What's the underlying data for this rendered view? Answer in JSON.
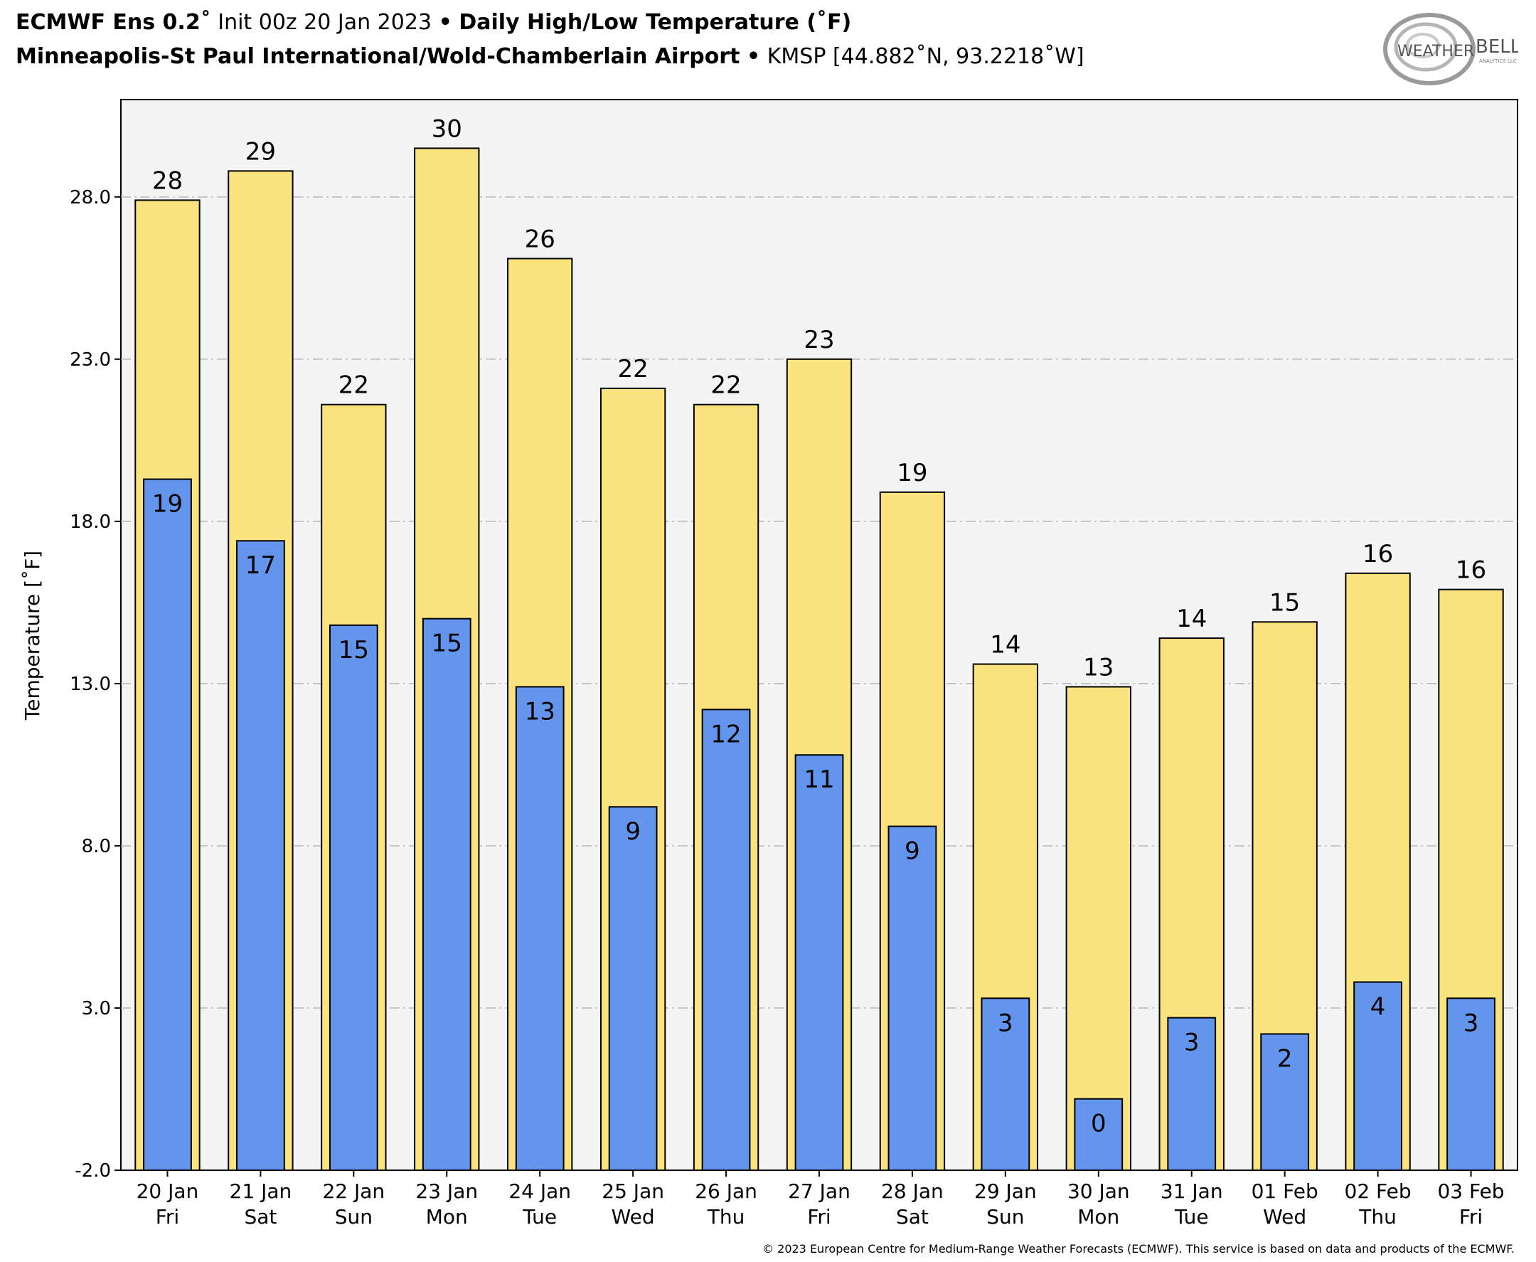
{
  "header": {
    "model": "ECMWF Ens 0.2˚",
    "init": "Init 00z 20 Jan 2023",
    "product": "Daily High/Low Temperature (˚F)",
    "station_name": "Minneapolis-St Paul International/Wold-Chamberlain Airport",
    "station_info": "KMSP [44.882˚N, 93.2218˚W]",
    "separator": "•"
  },
  "logo": {
    "text_left": "WEATHER",
    "text_right": "BELL",
    "subtext": "ANALYTICS LLC"
  },
  "footer": {
    "copyright": "© 2023 European Centre for Medium-Range Weather Forecasts (ECMWF). This service is based on data and products of the ECMWF."
  },
  "chart_data": {
    "type": "bar",
    "title": "Daily High/Low Temperature (˚F)",
    "ylabel": "Temperature [˚F]",
    "xlabel": "",
    "ylim": [
      -2,
      31
    ],
    "yticks": [
      -2.0,
      3.0,
      8.0,
      13.0,
      18.0,
      23.0,
      28.0
    ],
    "ytick_labels": [
      "-2.0",
      "3.0",
      "8.0",
      "13.0",
      "18.0",
      "23.0",
      "28.0"
    ],
    "grid": "horizontal dash-dot",
    "categories": [
      "20 Jan",
      "21 Jan",
      "22 Jan",
      "23 Jan",
      "24 Jan",
      "25 Jan",
      "26 Jan",
      "27 Jan",
      "28 Jan",
      "29 Jan",
      "30 Jan",
      "31 Jan",
      "01 Feb",
      "02 Feb",
      "03 Feb"
    ],
    "weekdays": [
      "Fri",
      "Sat",
      "Sun",
      "Mon",
      "Tue",
      "Wed",
      "Thu",
      "Fri",
      "Sat",
      "Sun",
      "Mon",
      "Tue",
      "Wed",
      "Thu",
      "Fri"
    ],
    "series": [
      {
        "color": "#fbe47f",
        "values": [
          27.9,
          28.8,
          21.6,
          29.5,
          26.1,
          22.1,
          21.6,
          23.0,
          18.9,
          13.6,
          12.9,
          14.4,
          14.9,
          16.4,
          15.9
        ],
        "labels": [
          "28",
          "29",
          "22",
          "30",
          "26",
          "22",
          "22",
          "23",
          "19",
          "14",
          "13",
          "14",
          "15",
          "16",
          "16"
        ]
      },
      {
        "color": "#6495ed",
        "values": [
          19.3,
          17.4,
          14.8,
          15.0,
          12.9,
          9.2,
          12.2,
          10.8,
          8.6,
          3.3,
          0.2,
          2.7,
          2.2,
          3.8,
          3.3
        ],
        "labels": [
          "19",
          "17",
          "15",
          "15",
          "13",
          "9",
          "12",
          "11",
          "9",
          "3",
          "0",
          "3",
          "2",
          "4",
          "3"
        ]
      }
    ]
  }
}
